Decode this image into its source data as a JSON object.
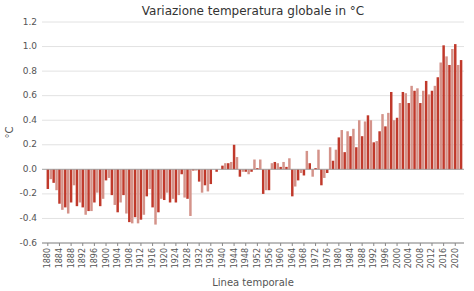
{
  "chart_data": {
    "type": "bar",
    "title": "Variazione temperatura globale in °C",
    "xlabel": "Linea temporale",
    "ylabel": "°C",
    "grid": true,
    "xlim": [
      1878,
      2023
    ],
    "xticks": [
      1880,
      1884,
      1888,
      1892,
      1896,
      1900,
      1904,
      1908,
      1912,
      1916,
      1920,
      1924,
      1928,
      1932,
      1936,
      1940,
      1944,
      1948,
      1952,
      1956,
      1960,
      1964,
      1968,
      1972,
      1976,
      1980,
      1984,
      1988,
      1992,
      1996,
      2000,
      2004,
      2008,
      2012,
      2016,
      2020
    ],
    "ylim": [
      -0.6,
      1.2
    ],
    "yticks": [
      -0.6,
      -0.4,
      -0.2,
      {
        "value": 0,
        "label": "0.0"
      },
      0.2,
      0.4,
      0.6,
      0.8,
      {
        "value": 1.0,
        "label": "1.0"
      },
      1.2
    ],
    "x": [
      1880,
      1881,
      1882,
      1883,
      1884,
      1885,
      1886,
      1887,
      1888,
      1889,
      1890,
      1891,
      1892,
      1893,
      1894,
      1895,
      1896,
      1897,
      1898,
      1899,
      1900,
      1901,
      1902,
      1903,
      1904,
      1905,
      1906,
      1907,
      1908,
      1909,
      1910,
      1911,
      1912,
      1913,
      1914,
      1915,
      1916,
      1917,
      1918,
      1919,
      1920,
      1921,
      1922,
      1923,
      1924,
      1925,
      1926,
      1927,
      1928,
      1929,
      1930,
      1931,
      1932,
      1933,
      1934,
      1935,
      1936,
      1937,
      1938,
      1939,
      1940,
      1941,
      1942,
      1943,
      1944,
      1945,
      1946,
      1947,
      1948,
      1949,
      1950,
      1951,
      1952,
      1953,
      1954,
      1955,
      1956,
      1957,
      1958,
      1959,
      1960,
      1961,
      1962,
      1963,
      1964,
      1965,
      1966,
      1967,
      1968,
      1969,
      1970,
      1971,
      1972,
      1973,
      1974,
      1975,
      1976,
      1977,
      1978,
      1979,
      1980,
      1981,
      1982,
      1983,
      1984,
      1985,
      1986,
      1987,
      1988,
      1989,
      1990,
      1991,
      1992,
      1993,
      1994,
      1995,
      1996,
      1997,
      1998,
      1999,
      2000,
      2001,
      2002,
      2003,
      2004,
      2005,
      2006,
      2007,
      2008,
      2009,
      2010,
      2011,
      2012,
      2013,
      2014,
      2015,
      2016,
      2017,
      2018,
      2019,
      2020,
      2021,
      2022
    ],
    "values": [
      -0.16,
      -0.08,
      -0.11,
      -0.17,
      -0.28,
      -0.33,
      -0.31,
      -0.36,
      -0.27,
      -0.13,
      -0.3,
      -0.27,
      -0.31,
      -0.37,
      -0.34,
      -0.34,
      -0.27,
      -0.19,
      -0.3,
      -0.24,
      -0.09,
      -0.07,
      -0.21,
      -0.29,
      -0.35,
      -0.27,
      -0.21,
      -0.36,
      -0.43,
      -0.44,
      -0.39,
      -0.44,
      -0.41,
      -0.37,
      -0.22,
      -0.16,
      -0.31,
      -0.45,
      -0.35,
      -0.24,
      -0.25,
      -0.19,
      -0.27,
      -0.24,
      -0.27,
      -0.21,
      -0.04,
      -0.23,
      -0.24,
      -0.38,
      -0.01,
      -0.01,
      -0.1,
      -0.19,
      -0.13,
      -0.18,
      -0.12,
      0.0,
      -0.02,
      0.0,
      0.03,
      0.05,
      0.05,
      0.06,
      0.2,
      0.1,
      -0.06,
      -0.02,
      -0.02,
      -0.04,
      -0.02,
      0.08,
      0.01,
      0.08,
      -0.2,
      -0.17,
      -0.17,
      0.05,
      0.06,
      0.05,
      0.02,
      0.06,
      0.02,
      0.09,
      -0.22,
      -0.14,
      -0.09,
      -0.03,
      -0.05,
      0.15,
      0.05,
      -0.06,
      0.01,
      0.16,
      -0.13,
      -0.07,
      -0.03,
      0.18,
      0.07,
      0.16,
      0.26,
      0.32,
      0.14,
      0.31,
      0.27,
      0.33,
      0.18,
      0.4,
      0.27,
      0.39,
      0.44,
      0.4,
      0.22,
      0.23,
      0.31,
      0.45,
      0.35,
      0.46,
      0.63,
      0.4,
      0.42,
      0.54,
      0.63,
      0.62,
      0.54,
      0.68,
      0.64,
      0.66,
      0.54,
      0.64,
      0.72,
      0.61,
      0.64,
      0.68,
      0.75,
      0.87,
      1.01,
      0.92,
      0.85,
      0.98,
      1.02,
      0.85,
      0.89
    ],
    "colors": [
      "#c0392b",
      "#d4938a",
      "#c0392b",
      "#d4938a",
      "#c0392b",
      "#d4938a",
      "#c0392b",
      "#d4938a",
      "#c0392b",
      "#d4938a",
      "#c0392b",
      "#d4938a",
      "#c0392b",
      "#d4938a",
      "#c0392b",
      "#d4938a",
      "#c0392b",
      "#d4938a",
      "#c0392b",
      "#d4938a",
      "#c0392b",
      "#d4938a",
      "#c0392b",
      "#d4938a",
      "#c0392b",
      "#d4938a",
      "#c0392b",
      "#d4938a",
      "#c0392b",
      "#d4938a",
      "#c0392b",
      "#d4938a",
      "#c0392b",
      "#d4938a",
      "#c0392b",
      "#d4938a",
      "#c0392b",
      "#d4938a",
      "#c0392b",
      "#d4938a",
      "#c0392b",
      "#d4938a",
      "#c0392b",
      "#d4938a",
      "#c0392b",
      "#d4938a",
      "#c0392b",
      "#d4938a",
      "#c0392b",
      "#d4938a",
      "#c0392b",
      "#d4938a",
      "#c0392b",
      "#d4938a",
      "#c0392b",
      "#d4938a",
      "#c0392b",
      "#d4938a",
      "#c0392b",
      "#d4938a",
      "#c0392b",
      "#d4938a",
      "#c0392b",
      "#d4938a",
      "#c0392b",
      "#d4938a",
      "#c0392b",
      "#d4938a",
      "#c0392b",
      "#d4938a",
      "#c0392b",
      "#d4938a",
      "#c0392b",
      "#d4938a",
      "#c0392b",
      "#d4938a",
      "#c0392b",
      "#d4938a",
      "#c0392b",
      "#d4938a",
      "#c0392b",
      "#d4938a",
      "#c0392b",
      "#d4938a",
      "#c0392b",
      "#d4938a",
      "#c0392b",
      "#d4938a",
      "#c0392b",
      "#d4938a",
      "#c0392b",
      "#d4938a",
      "#c0392b",
      "#d4938a",
      "#c0392b",
      "#d4938a",
      "#c0392b",
      "#d4938a",
      "#c0392b",
      "#d4938a",
      "#c0392b",
      "#d4938a",
      "#c0392b",
      "#d4938a",
      "#c0392b",
      "#d4938a",
      "#c0392b",
      "#d4938a",
      "#c0392b",
      "#d4938a",
      "#c0392b",
      "#d4938a",
      "#c0392b",
      "#d4938a",
      "#c0392b",
      "#d4938a",
      "#c0392b",
      "#d4938a",
      "#c0392b",
      "#d4938a",
      "#c0392b",
      "#d4938a",
      "#c0392b",
      "#d4938a",
      "#c0392b",
      "#d4938a",
      "#c0392b",
      "#d4938a",
      "#c0392b",
      "#d4938a",
      "#c0392b",
      "#d4938a",
      "#c0392b",
      "#d4938a",
      "#c0392b",
      "#d4938a",
      "#c0392b",
      "#d4938a",
      "#c0392b",
      "#d4938a",
      "#c0392b",
      "#d4938a",
      "#c0392b"
    ]
  }
}
